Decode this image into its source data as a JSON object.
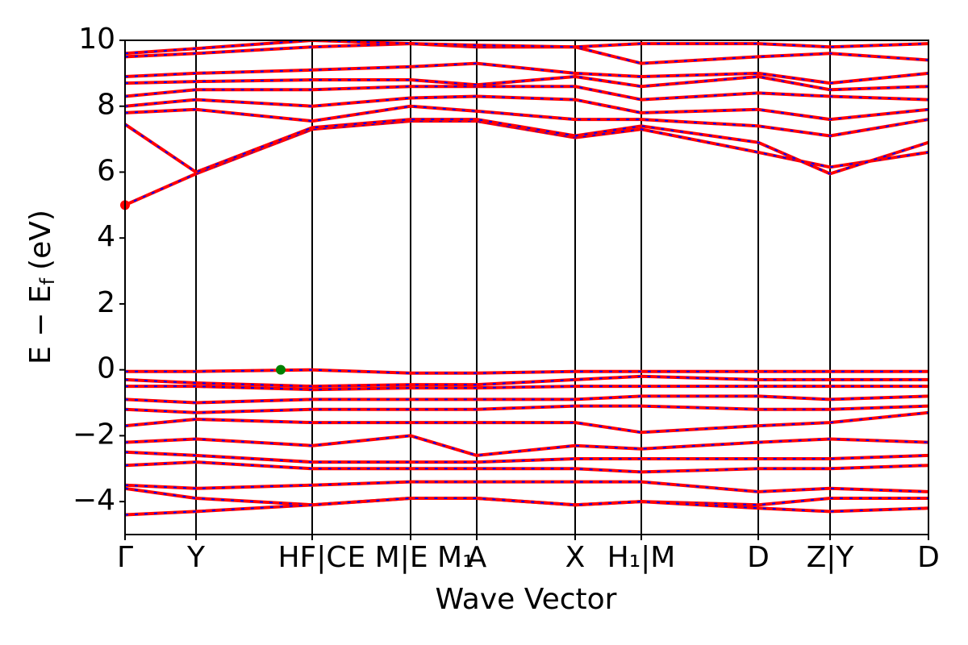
{
  "chart_data": {
    "type": "line",
    "xlabel": "Wave Vector",
    "ylabel": "E − E",
    "ylabel_sub": "f",
    "ylabel_unit": "(eV)",
    "x": [
      0,
      0.88,
      2.32,
      3.54,
      4.36,
      5.58,
      6.4,
      7.85,
      8.74,
      9.96
    ],
    "xlim": [
      0,
      9.96
    ],
    "xticks": [
      {
        "value": 0,
        "label": "Γ"
      },
      {
        "value": 0.88,
        "label": "Y"
      },
      {
        "value": 2.32,
        "label": "HF|C"
      },
      {
        "value": 3.54,
        "label": "E M|E M₁"
      },
      {
        "value": 4.36,
        "label": "A"
      },
      {
        "value": 5.58,
        "label": "X"
      },
      {
        "value": 6.4,
        "label": "H₁|M"
      },
      {
        "value": 7.85,
        "label": "D"
      },
      {
        "value": 8.74,
        "label": "Z|Y"
      },
      {
        "value": 9.96,
        "label": "D"
      }
    ],
    "ylim": [
      -5,
      10
    ],
    "yticks": [
      {
        "value": -4,
        "label": "−4"
      },
      {
        "value": -2,
        "label": "−2"
      },
      0,
      2,
      4,
      6,
      8,
      10
    ],
    "vertical_lines": true,
    "dash_color": "#0000ff",
    "series": [
      {
        "color": "#ff0000",
        "values": [
          5.0,
          5.95,
          7.3,
          7.55,
          7.55,
          7.05,
          7.3,
          6.6,
          6.15,
          6.6
        ]
      },
      {
        "color": "#ff0000",
        "values": [
          7.45,
          6.0,
          7.35,
          7.6,
          7.6,
          7.1,
          7.4,
          6.9,
          5.95,
          6.9
        ]
      },
      {
        "color": "#ff0000",
        "values": [
          7.8,
          7.9,
          7.55,
          8.0,
          7.85,
          7.6,
          7.6,
          7.4,
          7.1,
          7.6
        ]
      },
      {
        "color": "#ff0000",
        "values": [
          8.0,
          8.2,
          8.0,
          8.25,
          8.3,
          8.2,
          7.8,
          7.9,
          7.6,
          7.9
        ]
      },
      {
        "color": "#ff0000",
        "values": [
          8.3,
          8.5,
          8.5,
          8.6,
          8.6,
          8.6,
          8.2,
          8.4,
          8.3,
          8.2
        ]
      },
      {
        "color": "#ff0000",
        "values": [
          8.7,
          8.75,
          8.8,
          8.8,
          8.65,
          8.9,
          8.6,
          8.9,
          8.5,
          8.6
        ]
      },
      {
        "color": "#ff0000",
        "values": [
          8.9,
          9.0,
          9.1,
          9.2,
          9.3,
          9.0,
          8.9,
          9.0,
          8.7,
          9.0
        ]
      },
      {
        "color": "#ff0000",
        "values": [
          9.5,
          9.6,
          9.8,
          9.9,
          9.8,
          9.8,
          9.3,
          9.5,
          9.6,
          9.4
        ]
      },
      {
        "color": "#ff0000",
        "values": [
          9.6,
          9.75,
          10.0,
          9.9,
          9.85,
          9.8,
          9.9,
          9.9,
          9.8,
          9.9
        ]
      },
      {
        "color": "#ff0000",
        "values": [
          -0.05,
          -0.05,
          0.0,
          -0.1,
          -0.1,
          -0.05,
          -0.05,
          -0.05,
          -0.05,
          -0.05
        ]
      },
      {
        "color": "#ff0000",
        "values": [
          -0.3,
          -0.4,
          -0.5,
          -0.45,
          -0.45,
          -0.3,
          -0.2,
          -0.3,
          -0.3,
          -0.3
        ]
      },
      {
        "color": "#ff0000",
        "values": [
          -0.5,
          -0.5,
          -0.6,
          -0.55,
          -0.55,
          -0.5,
          -0.5,
          -0.5,
          -0.5,
          -0.5
        ]
      },
      {
        "color": "#ff0000",
        "values": [
          -0.9,
          -1.0,
          -0.9,
          -0.9,
          -0.9,
          -0.9,
          -0.8,
          -0.8,
          -0.9,
          -0.8
        ]
      },
      {
        "color": "#ff0000",
        "values": [
          -1.2,
          -1.3,
          -1.2,
          -1.2,
          -1.2,
          -1.1,
          -1.1,
          -1.2,
          -1.2,
          -1.1
        ]
      },
      {
        "color": "#ff0000",
        "values": [
          -1.7,
          -1.5,
          -1.6,
          -1.6,
          -1.6,
          -1.6,
          -1.9,
          -1.7,
          -1.6,
          -1.3
        ]
      },
      {
        "color": "#ff0000",
        "values": [
          -2.2,
          -2.1,
          -2.3,
          -2.0,
          -2.6,
          -2.3,
          -2.4,
          -2.2,
          -2.1,
          -2.2
        ]
      },
      {
        "color": "#ff0000",
        "values": [
          -2.5,
          -2.6,
          -2.8,
          -2.8,
          -2.8,
          -2.7,
          -2.7,
          -2.7,
          -2.7,
          -2.6
        ]
      },
      {
        "color": "#ff0000",
        "values": [
          -2.9,
          -2.8,
          -3.0,
          -3.0,
          -3.0,
          -3.0,
          -3.1,
          -3.0,
          -3.0,
          -2.9
        ]
      },
      {
        "color": "#ff0000",
        "values": [
          -3.5,
          -3.6,
          -3.5,
          -3.4,
          -3.4,
          -3.4,
          -3.4,
          -3.7,
          -3.6,
          -3.7
        ]
      },
      {
        "color": "#ff0000",
        "values": [
          -3.6,
          -3.9,
          -4.1,
          -3.9,
          -3.9,
          -4.1,
          -4.0,
          -4.1,
          -3.9,
          -3.9
        ]
      },
      {
        "color": "#ff0000",
        "values": [
          -4.4,
          -4.3,
          -4.1,
          -3.9,
          -3.9,
          -4.1,
          -4.0,
          -4.2,
          -4.3,
          -4.2
        ]
      }
    ],
    "points": [
      {
        "x": 0,
        "y": 5.0,
        "color": "#ff0000"
      },
      {
        "x": 1.93,
        "y": 0,
        "color": "#008000"
      }
    ]
  }
}
